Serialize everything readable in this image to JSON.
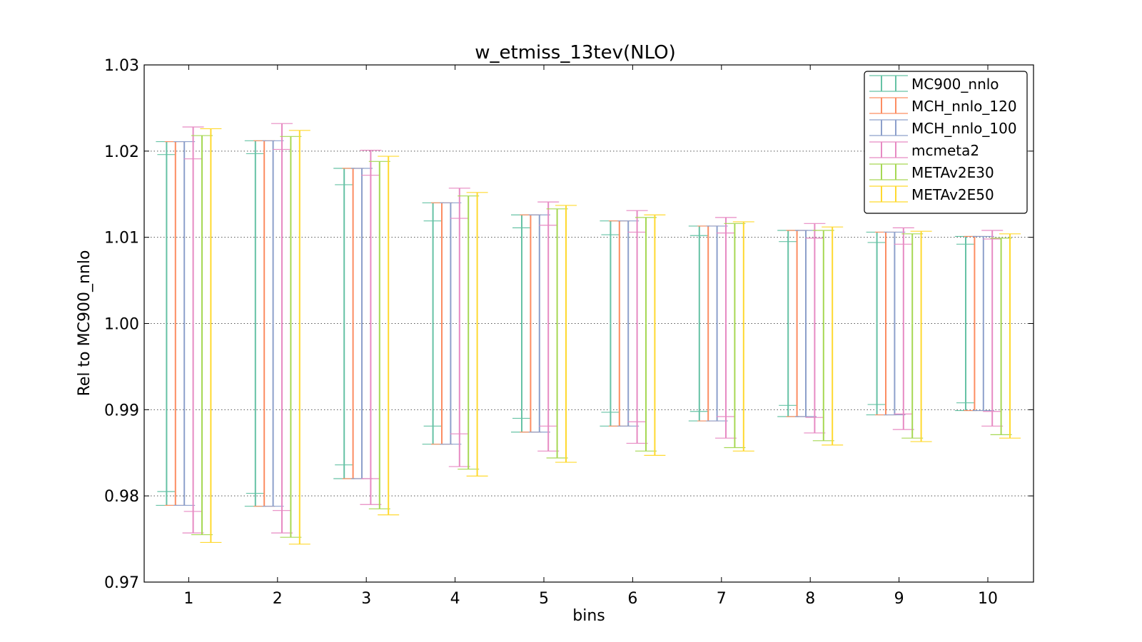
{
  "chart_data": {
    "type": "errorbar",
    "title": "w_etmiss_13tev(NLO)",
    "xlabel": "bins",
    "ylabel": "Rel to MC900_nnlo",
    "categories": [
      "1",
      "2",
      "3",
      "4",
      "5",
      "6",
      "7",
      "8",
      "9",
      "10"
    ],
    "ylim": [
      0.97,
      1.03
    ],
    "yticks": [
      "0.97",
      "0.98",
      "0.99",
      "1.00",
      "1.01",
      "1.02",
      "1.03"
    ],
    "grid": "y-dotted",
    "legend_position": "top-right",
    "series": [
      {
        "name": "MC900_nnlo",
        "color": "#66c2a5",
        "low": [
          0.9789,
          0.9788,
          0.982,
          0.986,
          0.9874,
          0.9881,
          0.9887,
          0.9892,
          0.9894,
          0.9899
        ],
        "high": [
          1.0211,
          1.0212,
          1.018,
          1.014,
          1.0126,
          1.0119,
          1.0113,
          1.0108,
          1.0106,
          1.0101
        ],
        "inner_low": [
          0.9805,
          0.9803,
          0.9836,
          0.9881,
          0.989,
          0.9897,
          0.9898,
          0.9905,
          0.9906,
          0.9908
        ],
        "inner_high": [
          1.0196,
          1.0197,
          1.0161,
          1.0119,
          1.0111,
          1.0103,
          1.0102,
          1.0095,
          1.0094,
          1.0092
        ]
      },
      {
        "name": "MCH_nnlo_120",
        "color": "#fc8d62",
        "low": [
          0.9789,
          0.9788,
          0.982,
          0.986,
          0.9874,
          0.9881,
          0.9887,
          0.9892,
          0.9894,
          0.9899
        ],
        "high": [
          1.0211,
          1.0212,
          1.018,
          1.014,
          1.0126,
          1.0119,
          1.0113,
          1.0108,
          1.0106,
          1.0101
        ]
      },
      {
        "name": "MCH_nnlo_100",
        "color": "#8da0cb",
        "low": [
          0.9789,
          0.9788,
          0.982,
          0.986,
          0.9874,
          0.9881,
          0.9887,
          0.9892,
          0.9894,
          0.9899
        ],
        "high": [
          1.0211,
          1.0212,
          1.018,
          1.014,
          1.0126,
          1.0119,
          1.0113,
          1.0108,
          1.0106,
          1.0101
        ]
      },
      {
        "name": "mcmeta2",
        "color": "#e78ac3",
        "low": [
          0.9757,
          0.9757,
          0.979,
          0.9834,
          0.9852,
          0.9861,
          0.9867,
          0.9873,
          0.9877,
          0.9881
        ],
        "high": [
          1.0228,
          1.0232,
          1.0201,
          1.0157,
          1.0141,
          1.0131,
          1.0123,
          1.0116,
          1.0111,
          1.0108
        ],
        "inner_low": [
          0.9782,
          0.9783,
          0.982,
          0.9872,
          0.9881,
          0.9886,
          0.9892,
          0.9891,
          0.9895,
          0.9898
        ],
        "inner_high": [
          1.0191,
          1.0202,
          1.0172,
          1.0122,
          1.0114,
          1.0106,
          1.0105,
          1.0099,
          1.0092,
          1.0098
        ]
      },
      {
        "name": "METAv2E30",
        "color": "#a6d854",
        "low": [
          0.9755,
          0.9752,
          0.9785,
          0.9831,
          0.9844,
          0.9852,
          0.9856,
          0.9864,
          0.9867,
          0.9871
        ],
        "high": [
          1.0218,
          1.0217,
          1.0188,
          1.0148,
          1.0133,
          1.0123,
          1.0116,
          1.0108,
          1.0104,
          1.0099
        ]
      },
      {
        "name": "METAv2E50",
        "color": "#ffd92f",
        "low": [
          0.9746,
          0.9744,
          0.9778,
          0.9823,
          0.9839,
          0.9847,
          0.9852,
          0.9859,
          0.9863,
          0.9867
        ],
        "high": [
          1.0226,
          1.0224,
          1.0194,
          1.0152,
          1.0137,
          1.0126,
          1.0118,
          1.0112,
          1.0107,
          1.0104
        ]
      }
    ]
  }
}
